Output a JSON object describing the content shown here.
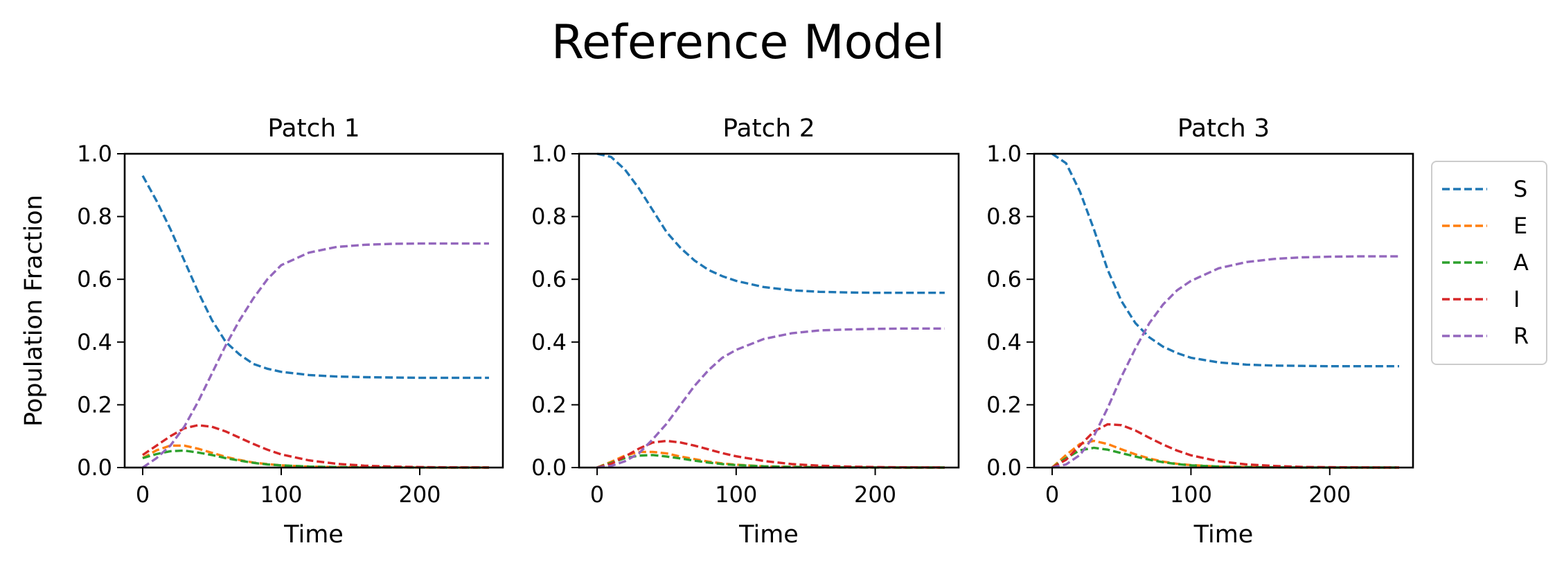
{
  "title": "Reference Model",
  "chart_data": [
    {
      "type": "line",
      "title": "Patch 1",
      "xlabel": "Time",
      "ylabel": "Population Fraction",
      "xlim": [
        -13,
        260
      ],
      "ylim": [
        0,
        1
      ],
      "xticks": [
        0,
        100,
        200
      ],
      "yticks": [
        0.0,
        0.2,
        0.4,
        0.6,
        0.8,
        1.0
      ],
      "x": [
        0,
        10,
        20,
        30,
        40,
        50,
        60,
        70,
        80,
        90,
        100,
        120,
        140,
        160,
        180,
        200,
        220,
        250
      ],
      "series": [
        {
          "name": "S",
          "color": "#1f77b4",
          "values": [
            0.93,
            0.85,
            0.76,
            0.66,
            0.56,
            0.47,
            0.4,
            0.36,
            0.33,
            0.315,
            0.305,
            0.295,
            0.29,
            0.288,
            0.287,
            0.286,
            0.286,
            0.286
          ]
        },
        {
          "name": "E",
          "color": "#ff7f0e",
          "values": [
            0.03,
            0.055,
            0.07,
            0.07,
            0.06,
            0.047,
            0.034,
            0.024,
            0.016,
            0.011,
            0.007,
            0.003,
            0.0015,
            0.0008,
            0.0004,
            0.0002,
            0.0001,
            0.0
          ]
        },
        {
          "name": "A",
          "color": "#2ca02c",
          "values": [
            0.03,
            0.043,
            0.052,
            0.054,
            0.048,
            0.04,
            0.03,
            0.022,
            0.015,
            0.01,
            0.007,
            0.003,
            0.0015,
            0.0008,
            0.0004,
            0.0002,
            0.0001,
            0.0
          ]
        },
        {
          "name": "I",
          "color": "#d62728",
          "values": [
            0.04,
            0.07,
            0.1,
            0.125,
            0.135,
            0.13,
            0.115,
            0.095,
            0.075,
            0.057,
            0.042,
            0.023,
            0.012,
            0.006,
            0.003,
            0.0015,
            0.0007,
            0.0002
          ]
        },
        {
          "name": "R",
          "color": "#9467bd",
          "values": [
            0.0,
            0.03,
            0.07,
            0.13,
            0.21,
            0.3,
            0.39,
            0.47,
            0.54,
            0.6,
            0.645,
            0.685,
            0.703,
            0.71,
            0.713,
            0.714,
            0.714,
            0.714
          ]
        }
      ]
    },
    {
      "type": "line",
      "title": "Patch 2",
      "xlabel": "Time",
      "ylabel": "",
      "xlim": [
        -13,
        260
      ],
      "ylim": [
        0,
        1
      ],
      "xticks": [
        0,
        100,
        200
      ],
      "yticks": [
        0.0,
        0.2,
        0.4,
        0.6,
        0.8,
        1.0
      ],
      "x": [
        0,
        10,
        20,
        30,
        40,
        50,
        60,
        70,
        80,
        90,
        100,
        120,
        140,
        160,
        180,
        200,
        220,
        250
      ],
      "series": [
        {
          "name": "S",
          "color": "#1f77b4",
          "values": [
            1.0,
            0.99,
            0.95,
            0.89,
            0.82,
            0.75,
            0.7,
            0.66,
            0.63,
            0.61,
            0.595,
            0.575,
            0.565,
            0.56,
            0.558,
            0.557,
            0.557,
            0.557
          ]
        },
        {
          "name": "E",
          "color": "#ff7f0e",
          "values": [
            0.0,
            0.018,
            0.038,
            0.05,
            0.05,
            0.045,
            0.035,
            0.027,
            0.019,
            0.013,
            0.009,
            0.004,
            0.002,
            0.001,
            0.0005,
            0.0002,
            0.0001,
            0.0
          ]
        },
        {
          "name": "A",
          "color": "#2ca02c",
          "values": [
            0.0,
            0.015,
            0.03,
            0.038,
            0.04,
            0.035,
            0.029,
            0.022,
            0.016,
            0.011,
            0.008,
            0.004,
            0.002,
            0.001,
            0.0005,
            0.0002,
            0.0001,
            0.0
          ]
        },
        {
          "name": "I",
          "color": "#d62728",
          "values": [
            0.0,
            0.012,
            0.035,
            0.06,
            0.08,
            0.085,
            0.08,
            0.07,
            0.058,
            0.046,
            0.036,
            0.021,
            0.011,
            0.006,
            0.003,
            0.0015,
            0.0007,
            0.0002
          ]
        },
        {
          "name": "R",
          "color": "#9467bd",
          "values": [
            0.0,
            0.005,
            0.02,
            0.045,
            0.09,
            0.14,
            0.2,
            0.26,
            0.31,
            0.35,
            0.375,
            0.41,
            0.428,
            0.437,
            0.44,
            0.442,
            0.443,
            0.443
          ]
        }
      ]
    },
    {
      "type": "line",
      "title": "Patch 3",
      "xlabel": "Time",
      "ylabel": "",
      "xlim": [
        -13,
        260
      ],
      "ylim": [
        0,
        1
      ],
      "xticks": [
        0,
        100,
        200
      ],
      "yticks": [
        0.0,
        0.2,
        0.4,
        0.6,
        0.8,
        1.0
      ],
      "x": [
        0,
        10,
        20,
        30,
        40,
        50,
        60,
        70,
        80,
        90,
        100,
        120,
        140,
        160,
        180,
        200,
        220,
        250
      ],
      "series": [
        {
          "name": "S",
          "color": "#1f77b4",
          "values": [
            1.0,
            0.97,
            0.88,
            0.76,
            0.63,
            0.53,
            0.46,
            0.415,
            0.385,
            0.365,
            0.35,
            0.335,
            0.328,
            0.325,
            0.324,
            0.323,
            0.323,
            0.323
          ]
        },
        {
          "name": "E",
          "color": "#ff7f0e",
          "values": [
            0.0,
            0.04,
            0.075,
            0.085,
            0.075,
            0.058,
            0.042,
            0.029,
            0.019,
            0.012,
            0.008,
            0.003,
            0.0015,
            0.0007,
            0.0003,
            0.0001,
            0.0,
            0.0
          ]
        },
        {
          "name": "A",
          "color": "#2ca02c",
          "values": [
            0.0,
            0.03,
            0.055,
            0.063,
            0.057,
            0.046,
            0.035,
            0.025,
            0.017,
            0.011,
            0.007,
            0.003,
            0.0015,
            0.0007,
            0.0003,
            0.0001,
            0.0,
            0.0
          ]
        },
        {
          "name": "I",
          "color": "#d62728",
          "values": [
            0.0,
            0.025,
            0.07,
            0.115,
            0.138,
            0.135,
            0.118,
            0.095,
            0.073,
            0.054,
            0.039,
            0.02,
            0.01,
            0.005,
            0.002,
            0.001,
            0.0005,
            0.0001
          ]
        },
        {
          "name": "R",
          "color": "#9467bd",
          "values": [
            0.0,
            0.01,
            0.04,
            0.1,
            0.19,
            0.29,
            0.38,
            0.46,
            0.52,
            0.565,
            0.595,
            0.635,
            0.655,
            0.665,
            0.67,
            0.672,
            0.673,
            0.673
          ]
        }
      ]
    }
  ],
  "legend": {
    "placement": "outside-right",
    "entries": [
      {
        "label": "S",
        "color": "#1f77b4"
      },
      {
        "label": "E",
        "color": "#ff7f0e"
      },
      {
        "label": "A",
        "color": "#2ca02c"
      },
      {
        "label": "I",
        "color": "#d62728"
      },
      {
        "label": "R",
        "color": "#9467bd"
      }
    ]
  }
}
